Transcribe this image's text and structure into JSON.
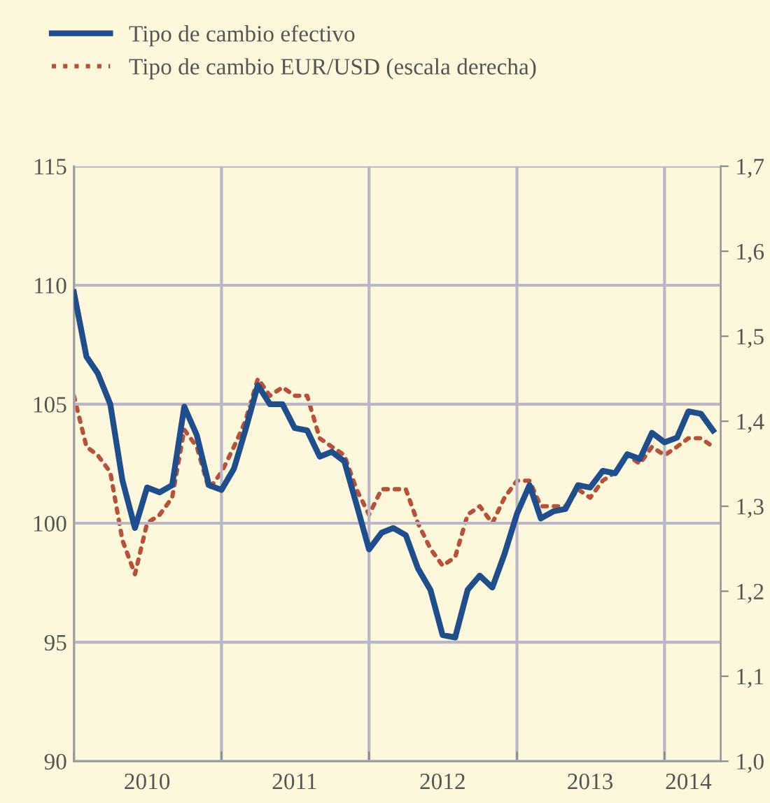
{
  "chart_data": {
    "type": "line",
    "x": [
      "2010-01",
      "2010-02",
      "2010-03",
      "2010-04",
      "2010-05",
      "2010-06",
      "2010-07",
      "2010-08",
      "2010-09",
      "2010-10",
      "2010-11",
      "2010-12",
      "2011-01",
      "2011-02",
      "2011-03",
      "2011-04",
      "2011-05",
      "2011-06",
      "2011-07",
      "2011-08",
      "2011-09",
      "2011-10",
      "2011-11",
      "2011-12",
      "2012-01",
      "2012-02",
      "2012-03",
      "2012-04",
      "2012-05",
      "2012-06",
      "2012-07",
      "2012-08",
      "2012-09",
      "2012-10",
      "2012-11",
      "2012-12",
      "2013-01",
      "2013-02",
      "2013-03",
      "2013-04",
      "2013-05",
      "2013-06",
      "2013-07",
      "2013-08",
      "2013-09",
      "2013-10",
      "2013-11",
      "2013-12",
      "2014-01",
      "2014-02",
      "2014-03",
      "2014-04",
      "2014-05"
    ],
    "series": [
      {
        "name": "Tipo de cambio efectivo",
        "color": "#1f4e8c",
        "line_style": "solid",
        "values": [
          109.7,
          107.0,
          106.3,
          105.0,
          101.8,
          99.8,
          101.5,
          101.3,
          101.6,
          104.9,
          103.7,
          101.6,
          101.4,
          102.3,
          103.9,
          105.8,
          105.0,
          105.0,
          104.0,
          103.9,
          102.8,
          103.0,
          102.6,
          100.8,
          98.9,
          99.6,
          99.8,
          99.5,
          98.1,
          97.2,
          95.3,
          95.2,
          97.2,
          97.8,
          97.3,
          98.7,
          100.4,
          101.6,
          100.2,
          100.5,
          100.6,
          101.6,
          101.5,
          102.2,
          102.1,
          102.9,
          102.7,
          103.8,
          103.4,
          103.6,
          104.7,
          104.6,
          103.9
        ]
      },
      {
        "name": "Tipo de cambio EUR/USD (escala derecha)",
        "color": "#b8503a",
        "line_style": "dotted",
        "axis": "y2",
        "values": [
          1.43,
          1.37,
          1.36,
          1.34,
          1.26,
          1.22,
          1.28,
          1.29,
          1.31,
          1.39,
          1.37,
          1.32,
          1.34,
          1.37,
          1.4,
          1.45,
          1.43,
          1.44,
          1.43,
          1.43,
          1.38,
          1.37,
          1.36,
          1.32,
          1.29,
          1.32,
          1.32,
          1.32,
          1.28,
          1.25,
          1.23,
          1.24,
          1.29,
          1.3,
          1.28,
          1.31,
          1.33,
          1.33,
          1.3,
          1.3,
          1.3,
          1.32,
          1.31,
          1.33,
          1.34,
          1.36,
          1.35,
          1.37,
          1.36,
          1.37,
          1.38,
          1.38,
          1.37
        ]
      }
    ],
    "xlim": [
      "2010-01-01",
      "2014-05-20"
    ],
    "xticks": [
      {
        "value": "2010-01-01",
        "label": null
      },
      {
        "value": "2011-01-01",
        "label": null
      },
      {
        "value": "2012-01-01",
        "label": null
      },
      {
        "value": "2013-01-01",
        "label": null
      },
      {
        "value": "2014-01-01",
        "label": null
      },
      {
        "value": "2010-07-01",
        "label": "2010"
      },
      {
        "value": "2011-07-01",
        "label": "2011"
      },
      {
        "value": "2012-07-01",
        "label": "2012"
      },
      {
        "value": "2013-07-01",
        "label": "2013"
      },
      {
        "value": "2014-03-01",
        "label": "2014"
      }
    ],
    "ylim": [
      90,
      115
    ],
    "yticks": [
      90,
      95,
      100,
      105,
      110,
      115
    ],
    "y2lim": [
      1.0,
      1.7
    ],
    "y2ticks": [
      {
        "value": 1.0,
        "label": "1,0"
      },
      {
        "value": 1.1,
        "label": "1,1"
      },
      {
        "value": 1.2,
        "label": "1,2"
      },
      {
        "value": 1.3,
        "label": "1,3"
      },
      {
        "value": 1.4,
        "label": "1,4"
      },
      {
        "value": 1.5,
        "label": "1,5"
      },
      {
        "value": 1.6,
        "label": "1,6"
      },
      {
        "value": 1.7,
        "label": "1,7"
      }
    ],
    "grid": true,
    "legend": "top left",
    "marker": "none"
  }
}
